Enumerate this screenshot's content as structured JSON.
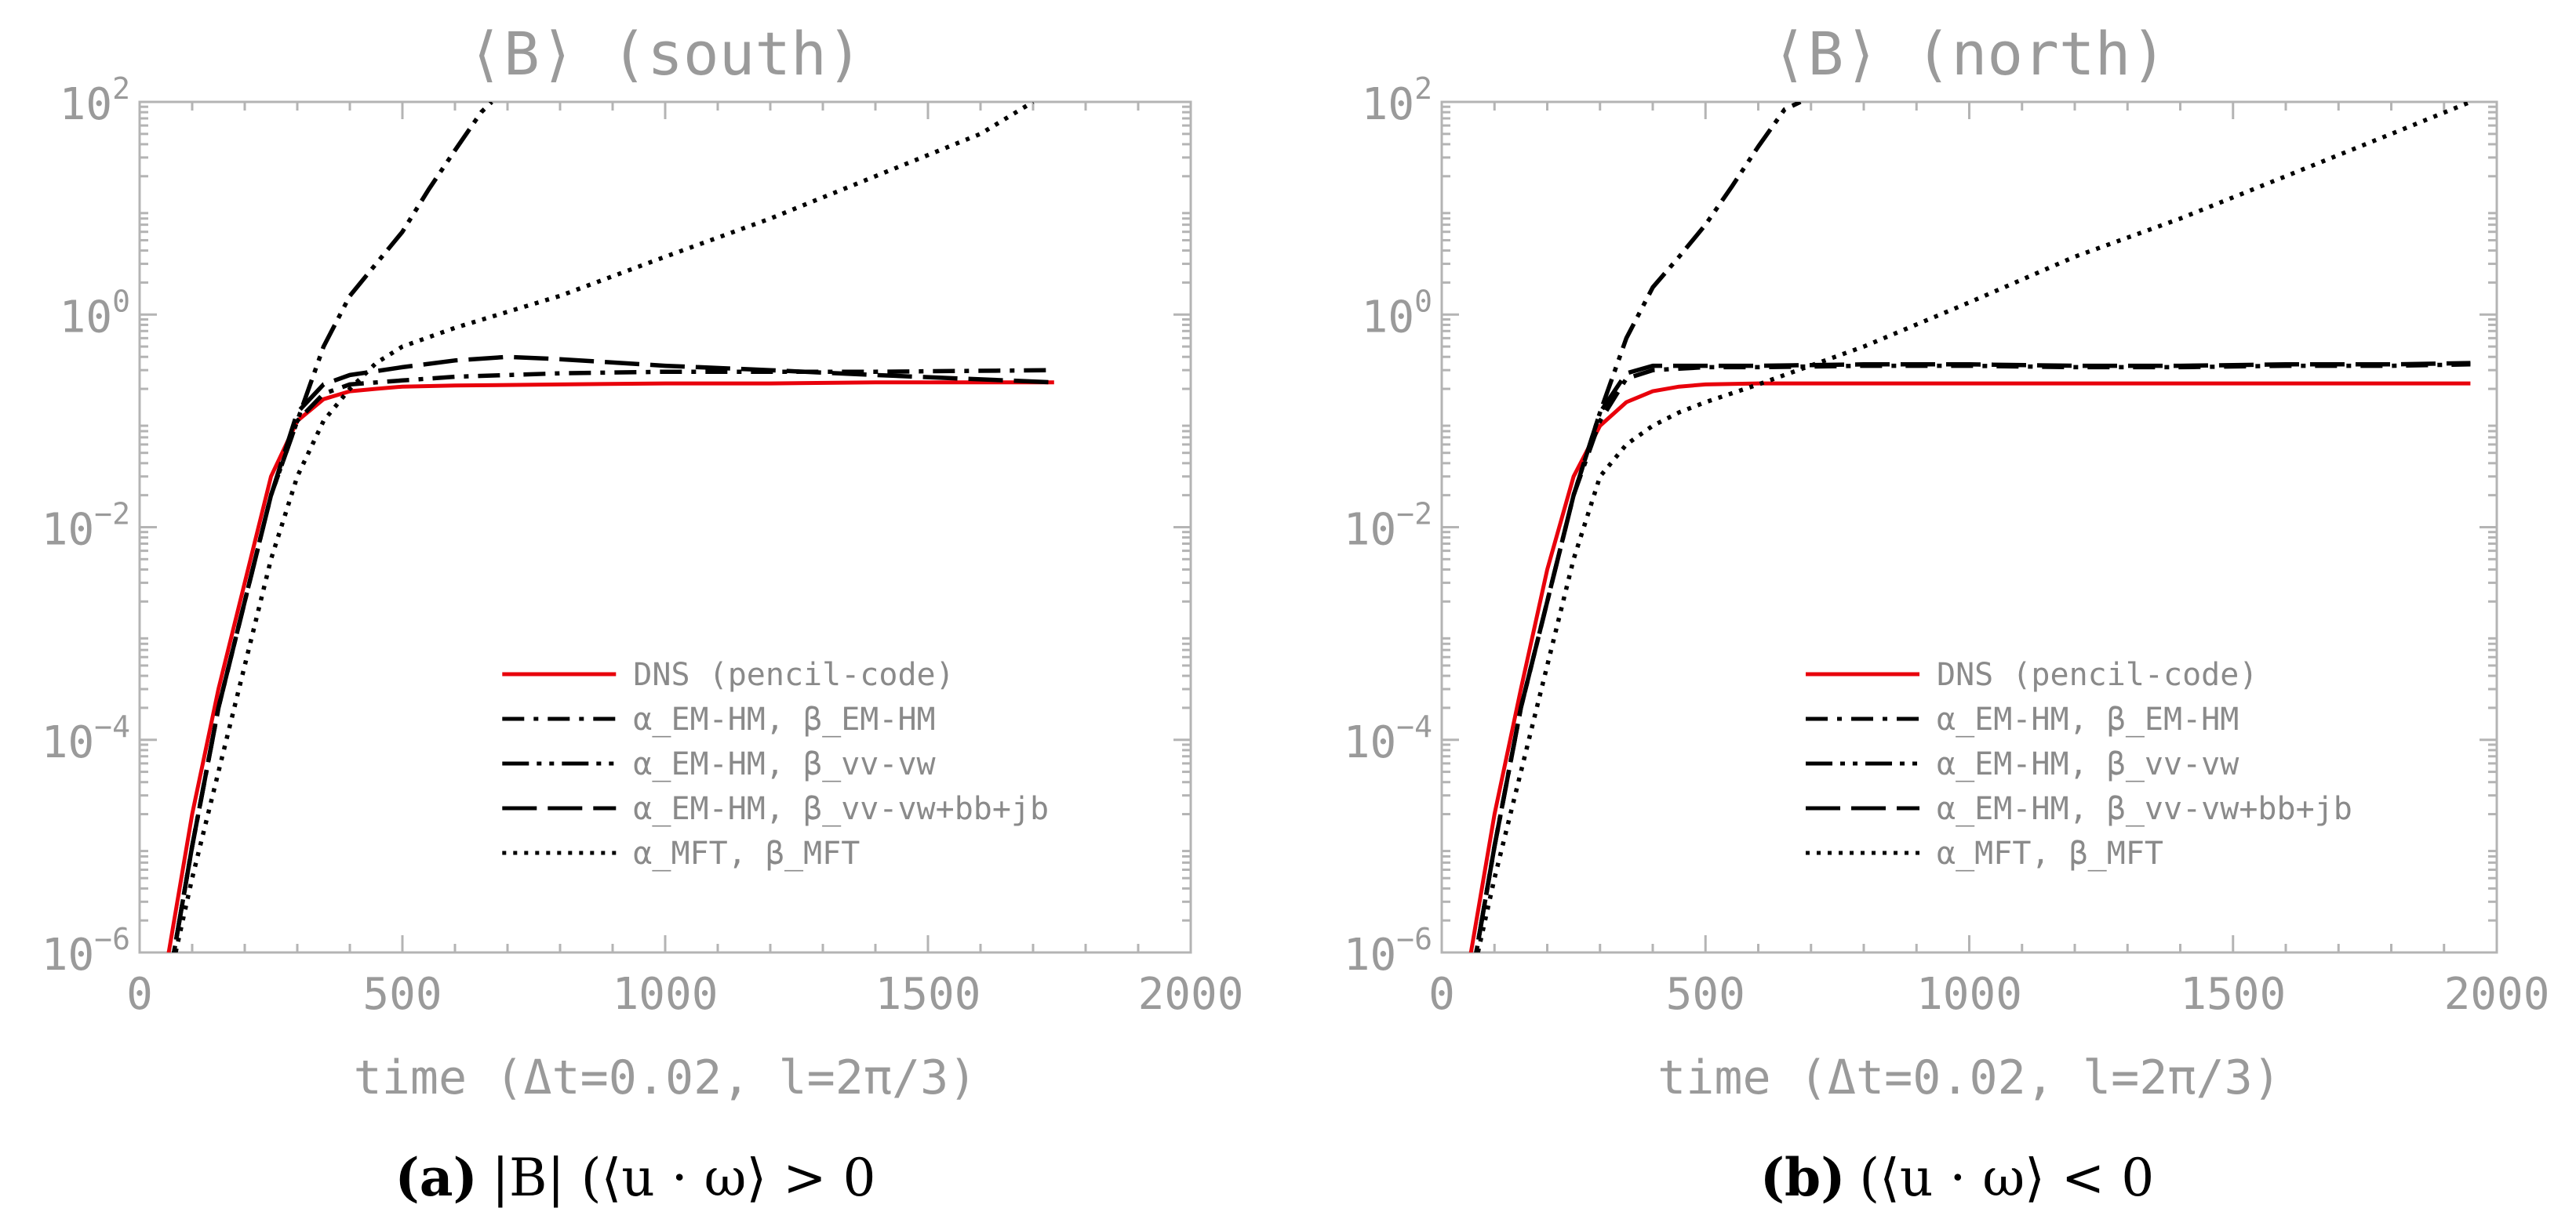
{
  "chart_data": [
    {
      "type": "line",
      "title": "⟨B⟩ (south)",
      "xlabel": "time (Δt=0.02, l=2π/3)",
      "ylabel": "",
      "xlim": [
        0,
        2000
      ],
      "ylim": [
        1e-06,
        100
      ],
      "yscale": "log",
      "xticks": [
        "0",
        "500",
        "1000",
        "1500",
        "2000"
      ],
      "yticks": [
        "10^-6",
        "10^-4",
        "10^-2",
        "10^0",
        "10^2"
      ],
      "caption_label": "(a)",
      "caption_text": "|B| (⟨u · ω⟩ > 0",
      "legend_position": "bottom-right",
      "series": [
        {
          "name": "DNS (pencil-code)",
          "color": "#e8000b",
          "style": "solid",
          "x": [
            45,
            100,
            150,
            200,
            250,
            300,
            350,
            400,
            450,
            500,
            600,
            800,
            1000,
            1200,
            1400,
            1600,
            1740
          ],
          "y": [
            5e-07,
            2e-05,
            0.0003,
            0.003,
            0.03,
            0.1,
            0.16,
            0.19,
            0.2,
            0.21,
            0.215,
            0.22,
            0.225,
            0.225,
            0.23,
            0.23,
            0.23
          ]
        },
        {
          "name": "α_EM-HM, β_EM-HM",
          "color": "#000000",
          "style": "dashdot",
          "x": [
            55,
            100,
            150,
            200,
            250,
            300,
            350,
            400,
            500,
            600,
            800,
            1000,
            1200,
            1400,
            1740
          ],
          "y": [
            5e-07,
            1e-05,
            0.0002,
            0.002,
            0.02,
            0.1,
            0.18,
            0.22,
            0.24,
            0.26,
            0.28,
            0.29,
            0.29,
            0.29,
            0.3
          ]
        },
        {
          "name": "α_EM-HM, β_vv-vw",
          "color": "#000000",
          "style": "dashdotdot",
          "x": [
            55,
            100,
            150,
            200,
            250,
            300,
            350,
            400,
            450,
            500,
            550,
            600,
            650,
            670
          ],
          "y": [
            5e-07,
            1e-05,
            0.0002,
            0.002,
            0.02,
            0.1,
            0.5,
            1.5,
            3,
            6,
            15,
            35,
            80,
            100
          ]
        },
        {
          "name": "α_EM-HM, β_vv-vw+bb+jb",
          "color": "#000000",
          "style": "longdash",
          "x": [
            55,
            100,
            150,
            200,
            250,
            300,
            350,
            400,
            500,
            600,
            700,
            800,
            1000,
            1200,
            1400,
            1740
          ],
          "y": [
            5e-07,
            1e-05,
            0.0002,
            0.002,
            0.02,
            0.12,
            0.22,
            0.27,
            0.32,
            0.37,
            0.4,
            0.38,
            0.33,
            0.3,
            0.27,
            0.23
          ]
        },
        {
          "name": "α_MFT, β_MFT",
          "color": "#000000",
          "style": "dotted",
          "x": [
            55,
            100,
            150,
            200,
            250,
            300,
            350,
            400,
            450,
            500,
            600,
            800,
            1000,
            1200,
            1400,
            1600,
            1700
          ],
          "y": [
            5e-07,
            5e-06,
            5e-05,
            0.0005,
            0.005,
            0.03,
            0.1,
            0.2,
            0.35,
            0.5,
            0.75,
            1.5,
            3.5,
            8,
            20,
            50,
            100
          ]
        }
      ]
    },
    {
      "type": "line",
      "title": "⟨B⟩ (north)",
      "xlabel": "time (Δt=0.02, l=2π/3)",
      "ylabel": "",
      "xlim": [
        0,
        2000
      ],
      "ylim": [
        1e-06,
        100
      ],
      "yscale": "log",
      "xticks": [
        "0",
        "500",
        "1000",
        "1500",
        "2000"
      ],
      "yticks": [
        "10^-6",
        "10^-4",
        "10^-2",
        "10^0",
        "10^2"
      ],
      "caption_label": "(b)",
      "caption_text": "(⟨u · ω⟩ < 0",
      "legend_position": "bottom-right",
      "series": [
        {
          "name": "DNS (pencil-code)",
          "color": "#e8000b",
          "style": "solid",
          "x": [
            45,
            100,
            150,
            200,
            250,
            300,
            350,
            400,
            450,
            500,
            600,
            800,
            1000,
            1200,
            1400,
            1600,
            1800,
            1950
          ],
          "y": [
            5e-07,
            2e-05,
            0.0003,
            0.004,
            0.03,
            0.09,
            0.15,
            0.19,
            0.21,
            0.22,
            0.225,
            0.225,
            0.225,
            0.225,
            0.225,
            0.225,
            0.225,
            0.225
          ]
        },
        {
          "name": "α_EM-HM, β_EM-HM",
          "color": "#000000",
          "style": "dashdot",
          "x": [
            55,
            100,
            150,
            200,
            250,
            300,
            350,
            400,
            500,
            600,
            800,
            1000,
            1200,
            1400,
            1600,
            1800,
            1950
          ],
          "y": [
            5e-07,
            1e-05,
            0.0002,
            0.002,
            0.02,
            0.1,
            0.25,
            0.3,
            0.32,
            0.32,
            0.33,
            0.33,
            0.32,
            0.32,
            0.33,
            0.33,
            0.34
          ]
        },
        {
          "name": "α_EM-HM, β_vv-vw",
          "color": "#000000",
          "style": "dashdotdot",
          "x": [
            55,
            100,
            150,
            200,
            250,
            300,
            350,
            400,
            450,
            500,
            550,
            600,
            650,
            680
          ],
          "y": [
            5e-07,
            1e-05,
            0.0002,
            0.002,
            0.02,
            0.12,
            0.6,
            1.8,
            3.5,
            7,
            16,
            38,
            85,
            100
          ]
        },
        {
          "name": "α_EM-HM, β_vv-vw+bb+jb",
          "color": "#000000",
          "style": "longdash",
          "x": [
            55,
            100,
            150,
            200,
            250,
            300,
            350,
            400,
            500,
            600,
            800,
            1000,
            1200,
            1400,
            1600,
            1800,
            1950
          ],
          "y": [
            5e-07,
            1e-05,
            0.0002,
            0.002,
            0.02,
            0.12,
            0.28,
            0.33,
            0.33,
            0.33,
            0.34,
            0.34,
            0.33,
            0.33,
            0.34,
            0.34,
            0.35
          ]
        },
        {
          "name": "α_MFT, β_MFT",
          "color": "#000000",
          "style": "dotted",
          "x": [
            55,
            100,
            150,
            200,
            250,
            300,
            350,
            400,
            450,
            500,
            600,
            800,
            1000,
            1200,
            1400,
            1600,
            1800,
            1950
          ],
          "y": [
            5e-07,
            5e-06,
            5e-05,
            0.0005,
            0.005,
            0.03,
            0.06,
            0.09,
            0.12,
            0.15,
            0.22,
            0.5,
            1.3,
            3.5,
            8,
            20,
            50,
            100
          ]
        }
      ]
    }
  ]
}
